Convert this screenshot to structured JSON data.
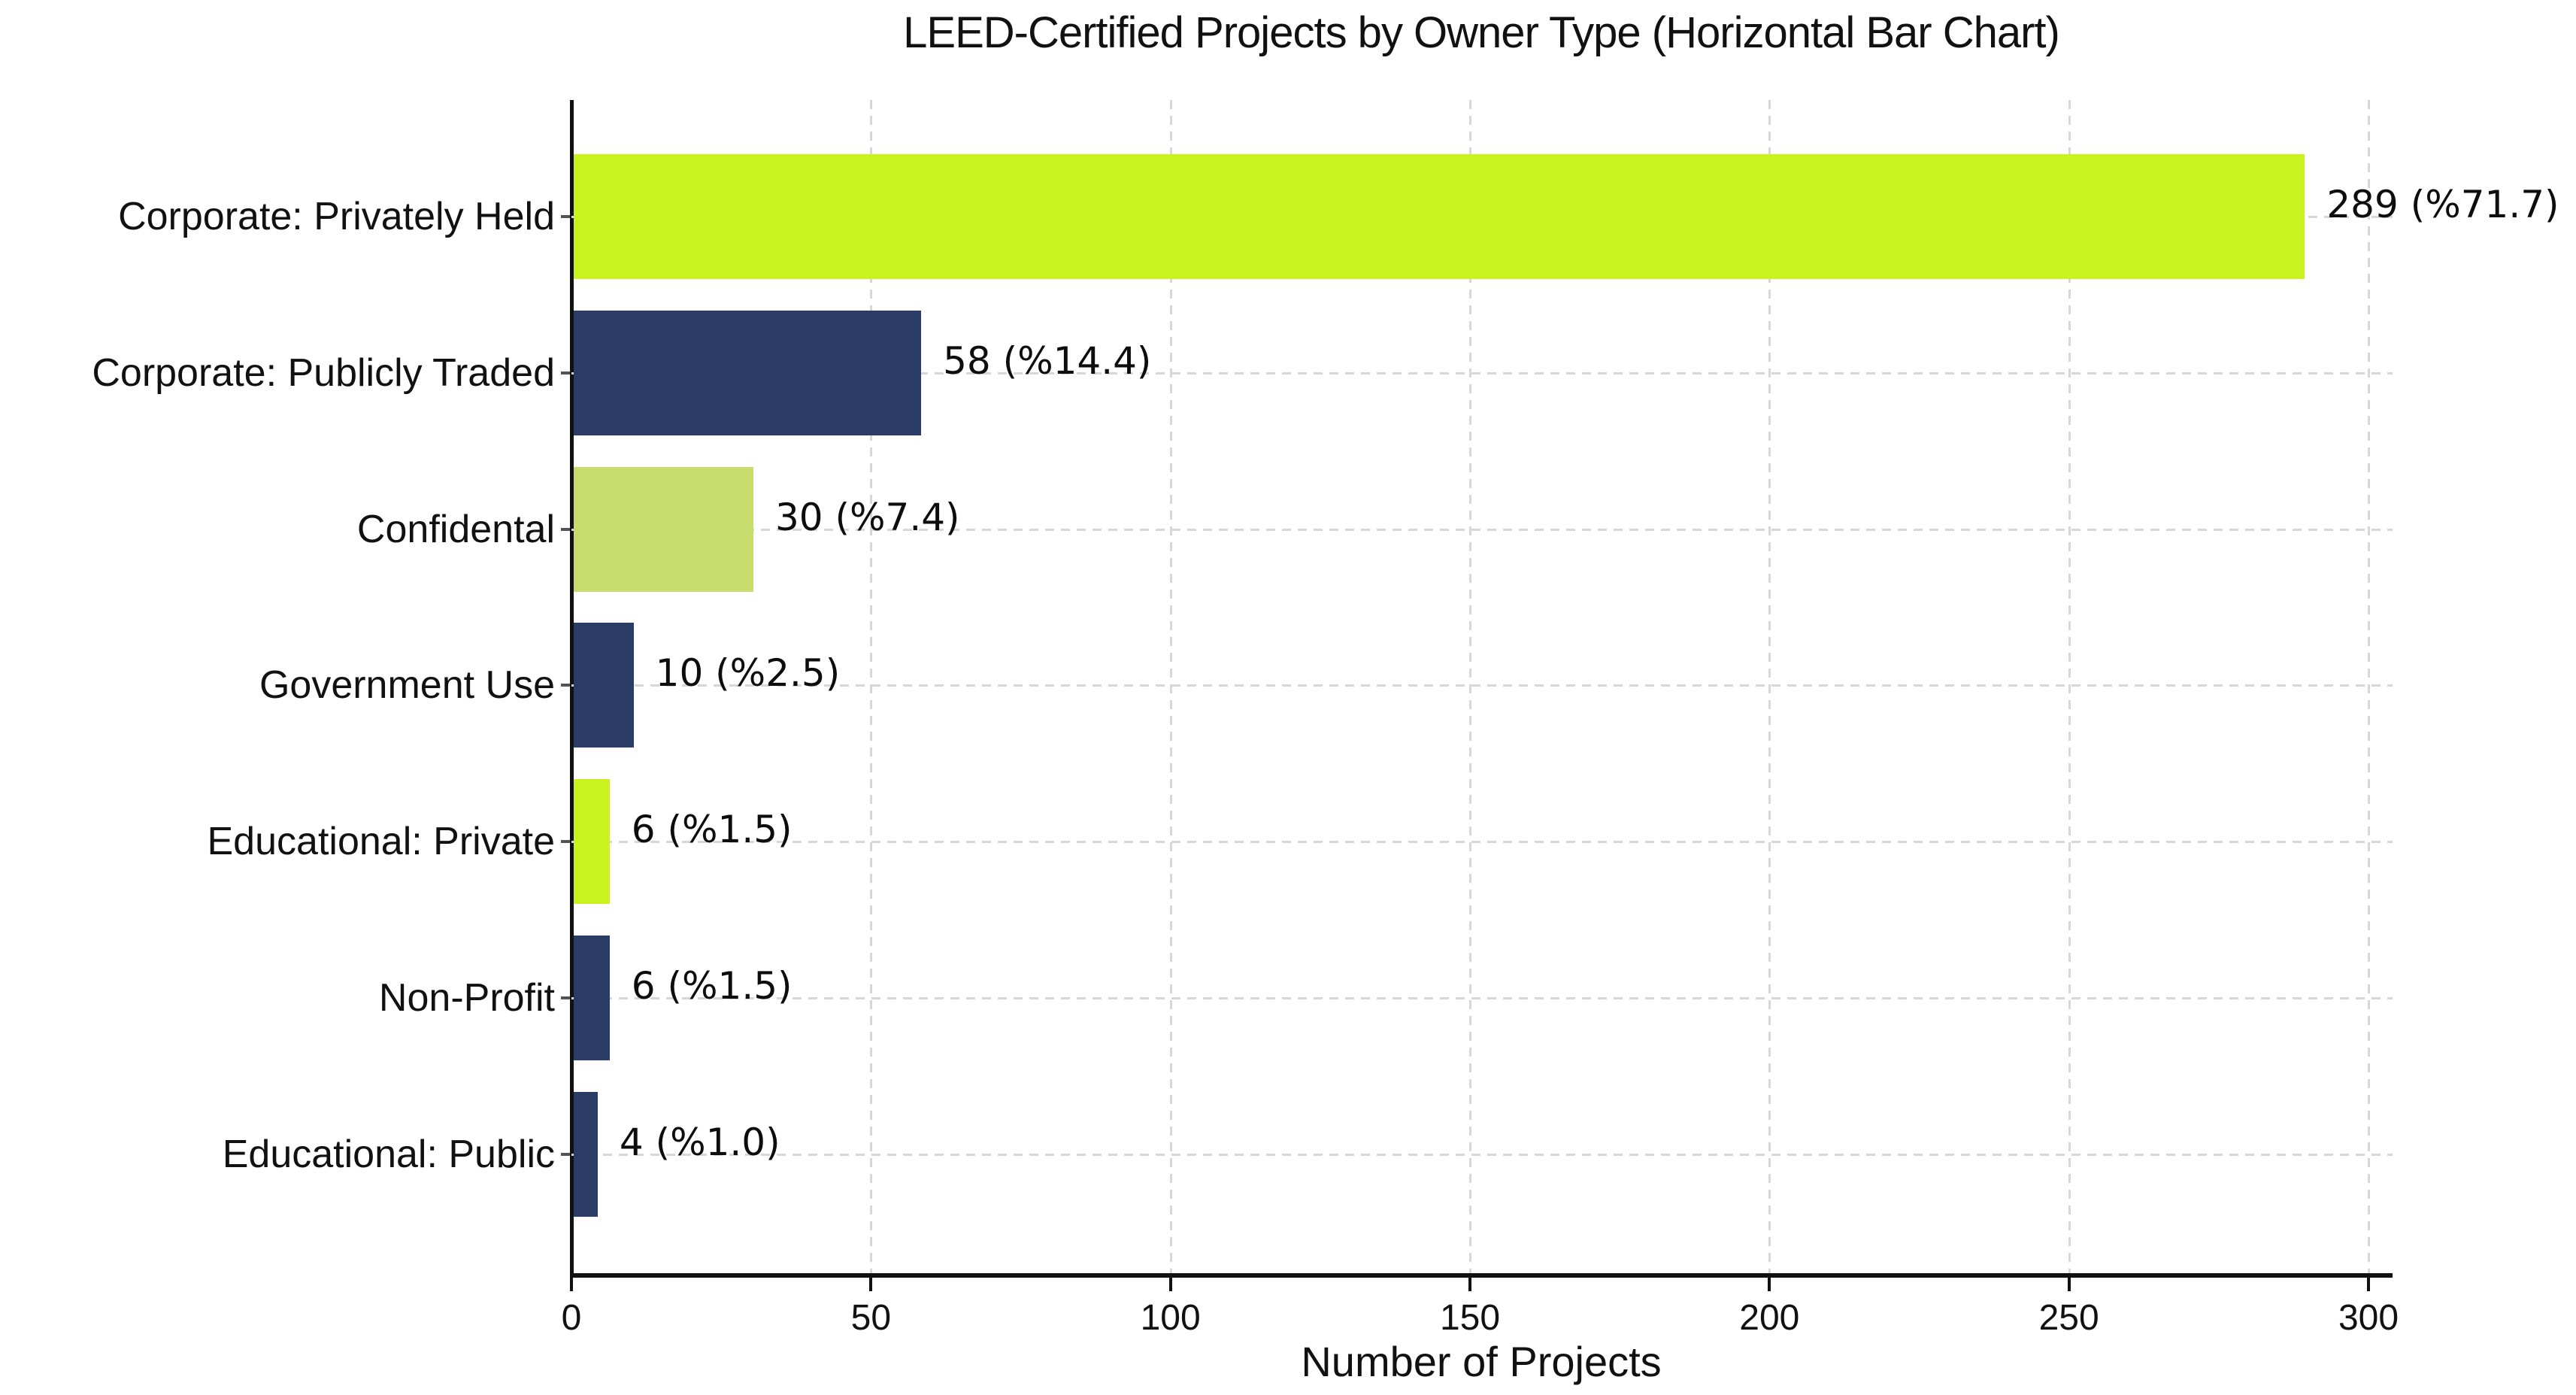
{
  "figure": {
    "title": "LEED-Certified Projects by Owner Type (Horizontal Bar Chart)",
    "xlabel": "Number of Projects"
  },
  "chart_data": {
    "type": "bar",
    "orientation": "horizontal",
    "title": "LEED-Certified Projects by Owner Type (Horizontal Bar Chart)",
    "xlabel": "Number of Projects",
    "ylabel": "",
    "categories": [
      "Corporate: Privately Held",
      "Corporate: Publicly Traded",
      "Confidental",
      "Government Use",
      "Educational: Private",
      "Non-Profit",
      "Educational: Public"
    ],
    "values": [
      289,
      58,
      30,
      10,
      6,
      6,
      4
    ],
    "percentages": [
      71.7,
      14.4,
      7.4,
      2.5,
      1.5,
      1.5,
      1.0
    ],
    "value_labels": [
      "289 (%71.7)",
      "58 (%14.4)",
      "30 (%7.4)",
      "10 (%2.5)",
      "6 (%1.5)",
      "6 (%1.5)",
      "4 (%1.0)"
    ],
    "bar_colors": [
      "#c9f21f",
      "#2b3d66",
      "#c6dd6b",
      "#2b3d66",
      "#c9f21f",
      "#2b3d66",
      "#2b3d66"
    ],
    "xticks": [
      0,
      50,
      100,
      150,
      200,
      250,
      300
    ],
    "xlim": [
      0,
      304
    ],
    "grid": true,
    "grid_style": "dashed",
    "legend": false,
    "colors": {
      "background": "#ffffff",
      "grid": "#d7d7d7",
      "axis": "#111111",
      "text": "#111111"
    }
  }
}
